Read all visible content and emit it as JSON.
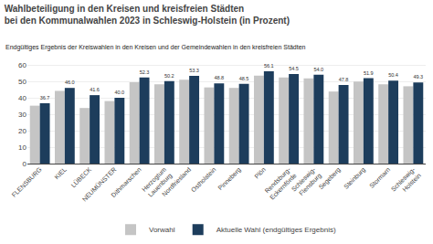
{
  "chart_data": {
    "type": "bar",
    "title": "Wahlbeteiligung in den Kreisen und kreisfreien Städten\nbei den Kommunalwahlen 2023 in Schleswig-Holstein (in Prozent)",
    "subtitle": "Endgültiges Ergebnis der Kreiswahlen in den Kreisen und der Gemeindewahlen in den kreisfreien Städten",
    "categories": [
      "FLENSBURG",
      "KIEL",
      "LÜBECK",
      "NEUMÜNSTER",
      "Dithmarschen",
      "Herzogtum\nLauenburg",
      "Nordfriesland",
      "Ostholstein",
      "Pinneberg",
      "Plön",
      "Rendsburg-\nEckernförde",
      "Schleswig-\nFlensburg",
      "Segeberg",
      "Steinburg",
      "Stormarn",
      "Schleswig-\nHolstein"
    ],
    "series": [
      {
        "name": "Vorwahl",
        "color": "#c5c5c5",
        "values": [
          35.2,
          44.2,
          33.8,
          38.0,
          49.5,
          48.2,
          51.0,
          46.3,
          46.0,
          53.5,
          52.3,
          51.8,
          43.8,
          49.8,
          48.2,
          47.0
        ]
      },
      {
        "name": "Aktuelle Wahl (endgültiges Ergebnis)",
        "color": "#1d3d5c",
        "values": [
          36.7,
          46.0,
          41.6,
          40.0,
          52.3,
          50.2,
          53.3,
          48.8,
          48.5,
          56.1,
          54.5,
          54.0,
          47.8,
          51.9,
          50.4,
          49.3
        ],
        "value_labels": [
          "36.7",
          "46.0",
          "41.6",
          "40.0",
          "52.3",
          "50.2",
          "53.3",
          "48.8",
          "48.5",
          "56.1",
          "54.5",
          "54.0",
          "47.8",
          "51.9",
          "50.4",
          "49.3"
        ],
        "data_labels": true
      }
    ],
    "ylim": [
      0,
      65
    ],
    "yticks": [
      0,
      10,
      20,
      30,
      40,
      50,
      60
    ],
    "grid": true,
    "legend": "bottom"
  }
}
